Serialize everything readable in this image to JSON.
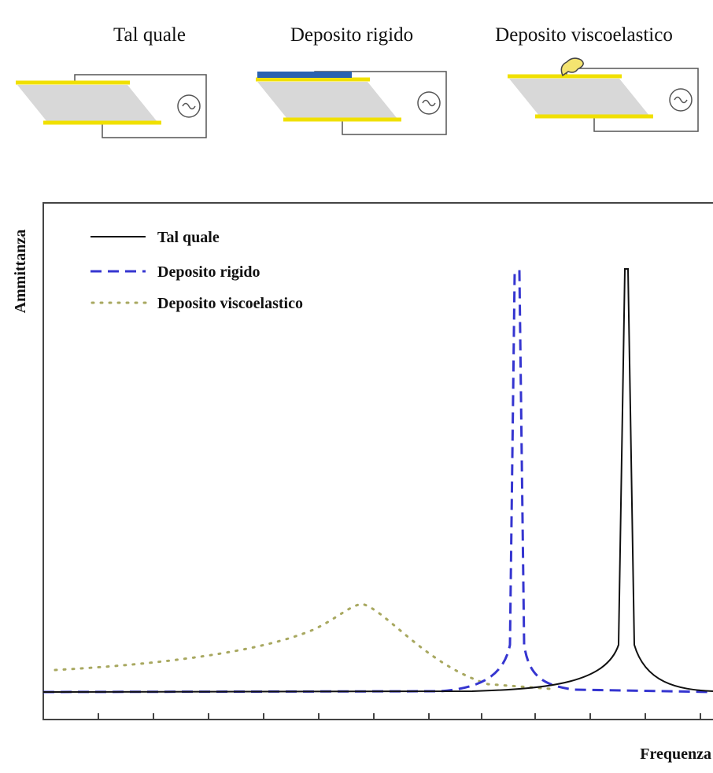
{
  "cells": [
    "Tal quale",
    "Deposito rigido",
    "Deposito viscoelastico"
  ],
  "legend": [
    "Tal quale",
    "Deposito rigido",
    "Deposito viscoelastico"
  ],
  "y_label": "Ammittanza",
  "x_label": "Frequenza"
}
